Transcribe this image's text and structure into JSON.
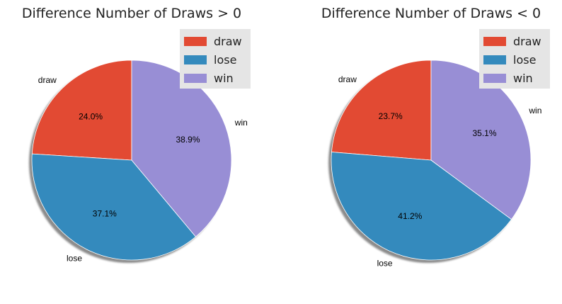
{
  "chart_data": [
    {
      "type": "pie",
      "title": "Difference Number of Draws > 0",
      "categories": [
        "draw",
        "lose",
        "win"
      ],
      "values": [
        24.0,
        37.1,
        38.9
      ],
      "value_labels": [
        "24.0%",
        "37.1%",
        "38.9%"
      ],
      "colors": [
        "#E24A33",
        "#348ABD",
        "#988ED5"
      ],
      "start_angle_deg": 90,
      "direction": "counterclockwise",
      "shadow": true,
      "legend": {
        "placement": "top-right",
        "entries": [
          "draw",
          "lose",
          "win"
        ]
      }
    },
    {
      "type": "pie",
      "title": "Difference Number of Draws < 0",
      "categories": [
        "draw",
        "lose",
        "win"
      ],
      "values": [
        23.7,
        41.2,
        35.1
      ],
      "value_labels": [
        "23.7%",
        "41.2%",
        "35.1%"
      ],
      "colors": [
        "#E24A33",
        "#348ABD",
        "#988ED5"
      ],
      "start_angle_deg": 90,
      "direction": "counterclockwise",
      "shadow": true,
      "legend": {
        "placement": "top-right",
        "entries": [
          "draw",
          "lose",
          "win"
        ]
      }
    }
  ]
}
